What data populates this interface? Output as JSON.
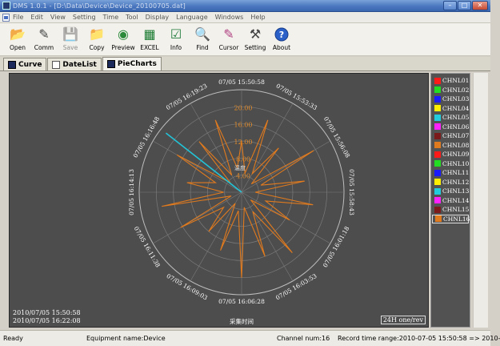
{
  "window": {
    "title": "DMS 1.0.1 - [D:\\Data\\Device\\Device_20100705.dat]",
    "buttons": {
      "minimize": "–",
      "maximize": "□",
      "close": "✕"
    }
  },
  "menu": [
    "File",
    "Edit",
    "View",
    "Setting",
    "Time",
    "Tool",
    "Display",
    "Language",
    "Windows",
    "Help"
  ],
  "toolbar": [
    {
      "label": "Open",
      "icon": "open-folder-icon",
      "enabled": true
    },
    {
      "label": "Comm",
      "icon": "comm-icon",
      "enabled": true
    },
    {
      "label": "Save",
      "icon": "save-icon",
      "enabled": false
    },
    {
      "label": "Copy",
      "icon": "copy-icon",
      "enabled": true
    },
    {
      "label": "Preview",
      "icon": "preview-icon",
      "enabled": true
    },
    {
      "label": "EXCEL",
      "icon": "excel-icon",
      "enabled": true
    },
    {
      "label": "Info",
      "icon": "info-icon",
      "enabled": true
    },
    {
      "label": "Find",
      "icon": "find-icon",
      "enabled": true
    },
    {
      "label": "Cursor",
      "icon": "cursor-icon",
      "enabled": true
    },
    {
      "label": "Setting",
      "icon": "setting-icon",
      "enabled": true
    },
    {
      "label": "About",
      "icon": "about-icon",
      "enabled": true
    }
  ],
  "tabs": [
    {
      "label": "Curve",
      "icon": "curve-tab-icon",
      "active": false
    },
    {
      "label": "DateList",
      "icon": "datelist-tab-icon",
      "active": false
    },
    {
      "label": "PieCharts",
      "icon": "piecharts-tab-icon",
      "active": true
    }
  ],
  "chart_data": {
    "type": "polar-line",
    "radial_ticks": [
      "4.00",
      "8.00",
      "12.00",
      "16.00",
      "20.00"
    ],
    "radial_range": [
      0,
      24
    ],
    "angular_labels": [
      "07/05 15:50:58",
      "07/05 15:53:33",
      "07/05 15:56:08",
      "07/05 15:58:43",
      "07/05 16:01:18",
      "07/05 16:03:53",
      "07/05 16:06:28",
      "07/05 16:09:03",
      "07/05 16:11:38",
      "07/05 16:14:13",
      "07/05 16:16:48",
      "07/05 16:19:23"
    ],
    "axis_label": "采集时间",
    "center_label": "温度",
    "start_time": "2010/07/05 15:50:58",
    "end_time": "2010/07/05 16:22:08",
    "range_label": "24H one/rev",
    "series": [
      {
        "name": "CHNL08",
        "color": "#e07a1e",
        "values": [
          12,
          4.5,
          18,
          5,
          13.5,
          3,
          19.5,
          4.8,
          15,
          3.2,
          17,
          6,
          13,
          2.8,
          18.5,
          5.2,
          16,
          3.6,
          20,
          4.4,
          14.5,
          3,
          12,
          5.5,
          16.5,
          2.6,
          19,
          4.2,
          13,
          6.5,
          17.5,
          3.4,
          15.5,
          4.6,
          18,
          5.8
        ]
      }
    ],
    "cursor": {
      "series": "CHNL09",
      "color": "#22c4d8",
      "angle_deg": 308,
      "value": 22.5
    }
  },
  "legend": [
    {
      "label": "CHNL01",
      "color": "#ff1a1a"
    },
    {
      "label": "CHNL02",
      "color": "#22dd22"
    },
    {
      "label": "CHNL03",
      "color": "#1a1aff"
    },
    {
      "label": "CHNL04",
      "color": "#ffee00"
    },
    {
      "label": "CHNL05",
      "color": "#22ccdd"
    },
    {
      "label": "CHNL06",
      "color": "#ff22ff"
    },
    {
      "label": "CHNL07",
      "color": "#7a1a1a"
    },
    {
      "label": "CHNL08",
      "color": "#e07a1e"
    },
    {
      "label": "CHNL09",
      "color": "#ff1a1a"
    },
    {
      "label": "CHNL10",
      "color": "#22dd22"
    },
    {
      "label": "CHNL11",
      "color": "#1a1aff"
    },
    {
      "label": "CHNL12",
      "color": "#ffee00"
    },
    {
      "label": "CHNL13",
      "color": "#22ccdd"
    },
    {
      "label": "CHNL14",
      "color": "#ff22ff"
    },
    {
      "label": "CHNL15",
      "color": "#7a1a1a"
    },
    {
      "label": "CHNL16",
      "color": "#e07a1e",
      "selected": true
    }
  ],
  "status": {
    "ready": "Ready",
    "equipment": "Equipment name:Device",
    "channel": "Channel num:16",
    "record_range": "Record time range:2010-07-05 15:50:58 => 2010-"
  }
}
